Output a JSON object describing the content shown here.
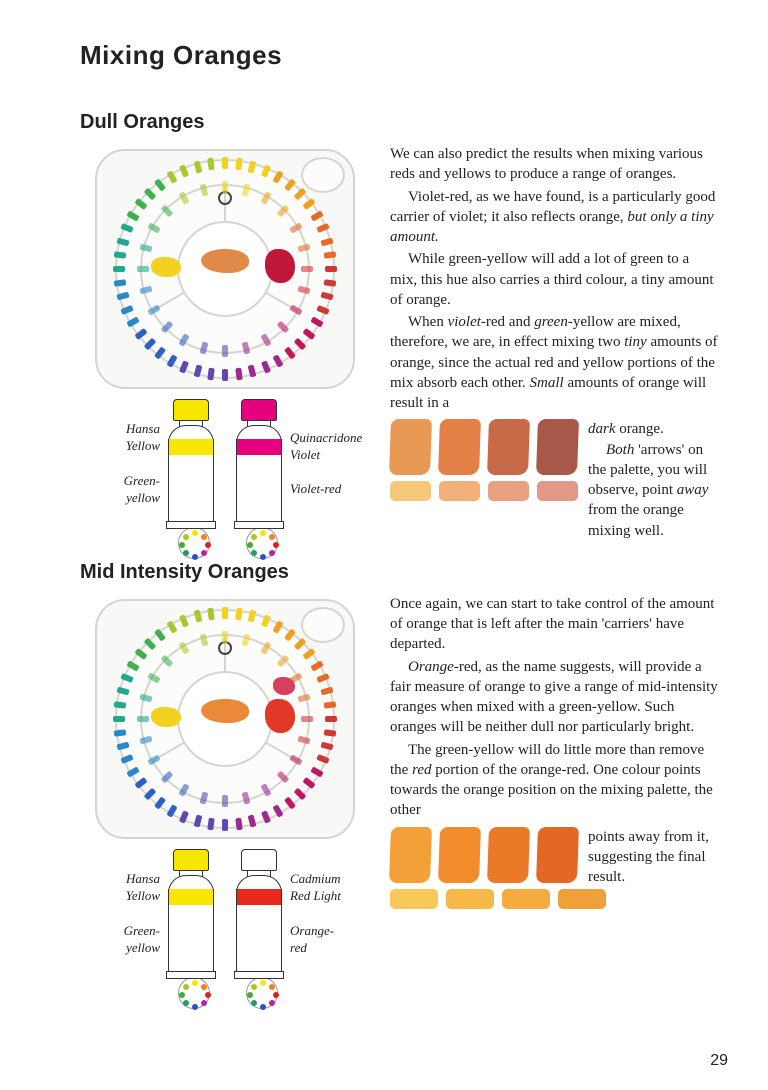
{
  "title": "Mixing Oranges",
  "page_number": "29",
  "section1": {
    "heading": "Dull Oranges",
    "palette": {
      "mix_color": "#e08a4a",
      "dab_left_color": "#f4d020",
      "dab_right_color": "#c01838",
      "rim_colors": [
        "#f4d020",
        "#f0a020",
        "#e86a28",
        "#d03838",
        "#c01860",
        "#a02890",
        "#6048b0",
        "#3060c0",
        "#2888c8",
        "#20a890",
        "#40b050",
        "#a8c830"
      ]
    },
    "tube_left": {
      "name": "Hansa Yellow",
      "sub": "Green-yellow",
      "cap_color": "#f7e600",
      "band_color": "#f7e600"
    },
    "tube_right": {
      "name": "Quinacridone Violet",
      "sub": "Violet-red",
      "cap_color": "#e6007e",
      "band_color": "#e6007e"
    },
    "p1": "We can also predict the results when mixing various reds and yellows to produce a range of oranges.",
    "p2a": "Violet-red, as we have found, is a particularly good carrier of violet; it also reflects orange, ",
    "p2i": "but only a tiny amount.",
    "p3": "While green-yellow will add a lot of green to a mix, this hue also carries a third colour, a tiny amount of orange.",
    "p4a": "When ",
    "p4b": "violet",
    "p4c": "-red and ",
    "p4d": "green",
    "p4e": "-yellow are mixed, therefore, we are, in effect mixing two ",
    "p4f": "tiny",
    "p4g": " amounts of orange, since the actual red and yellow portions of the mix absorb each other. ",
    "p4h": "Small",
    "p4i": " amounts of orange will result in a ",
    "p5a": "dark",
    "p5b": " orange.",
    "p6a": "Both",
    "p6b": " 'arrows' on the palette, you will observe, point ",
    "p6c": "away",
    "p6d": " from the orange mixing well.",
    "swatches_big": [
      "#e89a54",
      "#e28048",
      "#c86a48",
      "#a85848"
    ],
    "swatches_small": [
      "#f4c878",
      "#f0b078",
      "#e8a080",
      "#e09888"
    ]
  },
  "section2": {
    "heading": "Mid Intensity Oranges",
    "palette": {
      "mix_color": "#ea8a38",
      "dab_left_color": "#f4d020",
      "dab_right_color": "#e23828",
      "extra_dab_color": "#d84060"
    },
    "tube_left": {
      "name": "Hansa Yellow",
      "sub": "Green-yellow",
      "cap_color": "#f7e600",
      "band_color": "#f7e600"
    },
    "tube_right": {
      "name": "Cadmium Red Light",
      "sub": "Orange-red",
      "cap_color": "#ffffff",
      "band_color": "#e8281c"
    },
    "p1": "Once again, we can start to take control of the amount of orange that is left after the main 'carriers' have departed.",
    "p2a": "Orange",
    "p2b": "-red, as the name suggests, will provide a fair measure of orange to give a range of mid-intensity oranges when mixed with a green-yellow. Such oranges will be neither dull nor particularly bright.",
    "p3a": "The green-yellow will do little more than remove the ",
    "p3b": "red",
    "p3c": " portion of the orange-red. One colour points towards the orange position on the mixing palette, the other",
    "p4": "points away from it, suggesting the final result.",
    "swatches_big": [
      "#f4a038",
      "#f08c2c",
      "#ea7a28",
      "#e26824"
    ],
    "swatches_small": [
      "#f8c858",
      "#f6b848",
      "#f4ac40",
      "#f0a038"
    ]
  }
}
